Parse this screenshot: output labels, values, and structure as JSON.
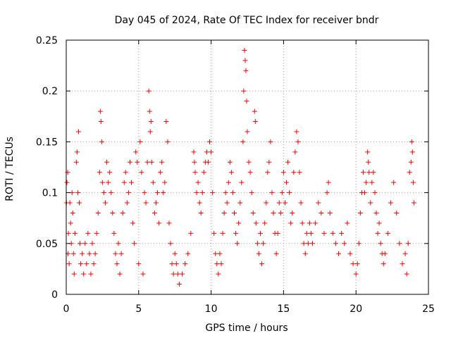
{
  "chart_data": {
    "type": "scatter",
    "title": "Day 045 of 2024, Rate Of TEC Index for receiver bndr",
    "xlabel": "GPS time / hours",
    "ylabel": "ROTI / TECUs",
    "xlim": [
      0,
      25
    ],
    "ylim": [
      0,
      0.25
    ],
    "xticks": [
      0,
      5,
      10,
      15,
      20,
      25
    ],
    "xtick_labels": [
      "0",
      "5",
      "10",
      "15",
      "20",
      "25"
    ],
    "yticks": [
      0,
      0.05,
      0.1,
      0.15,
      0.2,
      0.25
    ],
    "ytick_labels": [
      "0",
      "0.05",
      "0.1",
      "0.15",
      "0.2",
      "0.25"
    ],
    "grid": true,
    "marker": "+",
    "color": "#ff0000",
    "series": [
      {
        "name": "ROTI",
        "points": [
          [
            0.02,
            0.09
          ],
          [
            0.05,
            0.11
          ],
          [
            0.1,
            0.12
          ],
          [
            0.12,
            0.04
          ],
          [
            0.15,
            0.06
          ],
          [
            0.2,
            0.03
          ],
          [
            0.25,
            0.09
          ],
          [
            0.3,
            0.07
          ],
          [
            0.35,
            0.05
          ],
          [
            0.4,
            0.1
          ],
          [
            0.45,
            0.08
          ],
          [
            0.5,
            0.04
          ],
          [
            0.55,
            0.02
          ],
          [
            0.6,
            0.06
          ],
          [
            0.7,
            0.13
          ],
          [
            0.75,
            0.14
          ],
          [
            0.8,
            0.1
          ],
          [
            0.85,
            0.16
          ],
          [
            0.9,
            0.09
          ],
          [
            0.95,
            0.05
          ],
          [
            1.0,
            0.03
          ],
          [
            1.1,
            0.04
          ],
          [
            1.2,
            0.02
          ],
          [
            1.3,
            0.05
          ],
          [
            1.4,
            0.03
          ],
          [
            1.5,
            0.06
          ],
          [
            1.6,
            0.04
          ],
          [
            1.7,
            0.02
          ],
          [
            1.8,
            0.05
          ],
          [
            1.9,
            0.03
          ],
          [
            2.0,
            0.04
          ],
          [
            2.1,
            0.06
          ],
          [
            2.2,
            0.08
          ],
          [
            2.3,
            0.12
          ],
          [
            2.35,
            0.18
          ],
          [
            2.4,
            0.17
          ],
          [
            2.45,
            0.15
          ],
          [
            2.5,
            0.11
          ],
          [
            2.6,
            0.1
          ],
          [
            2.7,
            0.09
          ],
          [
            2.8,
            0.13
          ],
          [
            2.9,
            0.11
          ],
          [
            3.0,
            0.12
          ],
          [
            3.1,
            0.1
          ],
          [
            3.2,
            0.08
          ],
          [
            3.3,
            0.06
          ],
          [
            3.4,
            0.04
          ],
          [
            3.5,
            0.03
          ],
          [
            3.6,
            0.05
          ],
          [
            3.7,
            0.02
          ],
          [
            3.8,
            0.04
          ],
          [
            3.9,
            0.08
          ],
          [
            4.0,
            0.11
          ],
          [
            4.1,
            0.12
          ],
          [
            4.2,
            0.09
          ],
          [
            4.3,
            0.1
          ],
          [
            4.4,
            0.13
          ],
          [
            4.5,
            0.11
          ],
          [
            4.6,
            0.07
          ],
          [
            4.7,
            0.05
          ],
          [
            4.8,
            0.14
          ],
          [
            4.9,
            0.13
          ],
          [
            5.0,
            0.03
          ],
          [
            5.1,
            0.15
          ],
          [
            5.2,
            0.12
          ],
          [
            5.3,
            0.02
          ],
          [
            5.4,
            0.1
          ],
          [
            5.5,
            0.09
          ],
          [
            5.6,
            0.13
          ],
          [
            5.7,
            0.2
          ],
          [
            5.75,
            0.18
          ],
          [
            5.8,
            0.16
          ],
          [
            5.85,
            0.17
          ],
          [
            5.9,
            0.13
          ],
          [
            6.0,
            0.11
          ],
          [
            6.1,
            0.08
          ],
          [
            6.2,
            0.09
          ],
          [
            6.3,
            0.1
          ],
          [
            6.4,
            0.07
          ],
          [
            6.5,
            0.12
          ],
          [
            6.6,
            0.13
          ],
          [
            6.7,
            0.1
          ],
          [
            6.8,
            0.11
          ],
          [
            6.9,
            0.17
          ],
          [
            7.0,
            0.15
          ],
          [
            7.1,
            0.07
          ],
          [
            7.2,
            0.05
          ],
          [
            7.3,
            0.03
          ],
          [
            7.4,
            0.02
          ],
          [
            7.5,
            0.04
          ],
          [
            7.6,
            0.03
          ],
          [
            7.7,
            0.02
          ],
          [
            7.8,
            0.01
          ],
          [
            8.0,
            0.02
          ],
          [
            8.2,
            0.03
          ],
          [
            8.4,
            0.04
          ],
          [
            8.6,
            0.06
          ],
          [
            8.8,
            0.14
          ],
          [
            8.85,
            0.13
          ],
          [
            8.9,
            0.12
          ],
          [
            9.0,
            0.1
          ],
          [
            9.1,
            0.11
          ],
          [
            9.2,
            0.09
          ],
          [
            9.3,
            0.08
          ],
          [
            9.4,
            0.1
          ],
          [
            9.5,
            0.12
          ],
          [
            9.6,
            0.13
          ],
          [
            9.7,
            0.14
          ],
          [
            9.8,
            0.13
          ],
          [
            9.9,
            0.15
          ],
          [
            10.0,
            0.14
          ],
          [
            10.1,
            0.1
          ],
          [
            10.2,
            0.06
          ],
          [
            10.3,
            0.04
          ],
          [
            10.4,
            0.03
          ],
          [
            10.5,
            0.02
          ],
          [
            10.6,
            0.04
          ],
          [
            10.7,
            0.03
          ],
          [
            10.8,
            0.06
          ],
          [
            10.9,
            0.08
          ],
          [
            11.0,
            0.1
          ],
          [
            11.1,
            0.09
          ],
          [
            11.2,
            0.11
          ],
          [
            11.3,
            0.13
          ],
          [
            11.4,
            0.12
          ],
          [
            11.5,
            0.1
          ],
          [
            11.6,
            0.08
          ],
          [
            11.7,
            0.06
          ],
          [
            11.8,
            0.05
          ],
          [
            11.9,
            0.07
          ],
          [
            12.0,
            0.09
          ],
          [
            12.1,
            0.11
          ],
          [
            12.2,
            0.15
          ],
          [
            12.25,
            0.2
          ],
          [
            12.3,
            0.24
          ],
          [
            12.35,
            0.23
          ],
          [
            12.4,
            0.22
          ],
          [
            12.45,
            0.19
          ],
          [
            12.5,
            0.16
          ],
          [
            12.6,
            0.13
          ],
          [
            12.7,
            0.12
          ],
          [
            12.8,
            0.1
          ],
          [
            12.9,
            0.08
          ],
          [
            13.0,
            0.18
          ],
          [
            13.05,
            0.17
          ],
          [
            13.1,
            0.07
          ],
          [
            13.2,
            0.05
          ],
          [
            13.3,
            0.04
          ],
          [
            13.4,
            0.06
          ],
          [
            13.5,
            0.03
          ],
          [
            13.6,
            0.05
          ],
          [
            13.7,
            0.07
          ],
          [
            13.8,
            0.09
          ],
          [
            13.9,
            0.12
          ],
          [
            14.0,
            0.13
          ],
          [
            14.1,
            0.15
          ],
          [
            14.2,
            0.1
          ],
          [
            14.3,
            0.08
          ],
          [
            14.4,
            0.06
          ],
          [
            14.5,
            0.04
          ],
          [
            14.6,
            0.06
          ],
          [
            14.7,
            0.09
          ],
          [
            14.8,
            0.08
          ],
          [
            14.9,
            0.1
          ],
          [
            15.0,
            0.12
          ],
          [
            15.1,
            0.09
          ],
          [
            15.2,
            0.11
          ],
          [
            15.3,
            0.13
          ],
          [
            15.4,
            0.1
          ],
          [
            15.5,
            0.07
          ],
          [
            15.6,
            0.08
          ],
          [
            15.7,
            0.12
          ],
          [
            15.8,
            0.14
          ],
          [
            15.9,
            0.16
          ],
          [
            16.0,
            0.15
          ],
          [
            16.1,
            0.12
          ],
          [
            16.2,
            0.09
          ],
          [
            16.3,
            0.07
          ],
          [
            16.4,
            0.05
          ],
          [
            16.5,
            0.04
          ],
          [
            16.6,
            0.06
          ],
          [
            16.7,
            0.05
          ],
          [
            16.8,
            0.07
          ],
          [
            16.9,
            0.06
          ],
          [
            17.0,
            0.05
          ],
          [
            17.2,
            0.07
          ],
          [
            17.4,
            0.09
          ],
          [
            17.6,
            0.08
          ],
          [
            17.8,
            0.06
          ],
          [
            18.0,
            0.1
          ],
          [
            18.1,
            0.11
          ],
          [
            18.2,
            0.08
          ],
          [
            18.4,
            0.06
          ],
          [
            18.6,
            0.05
          ],
          [
            18.8,
            0.04
          ],
          [
            19.0,
            0.06
          ],
          [
            19.2,
            0.05
          ],
          [
            19.4,
            0.07
          ],
          [
            19.6,
            0.04
          ],
          [
            19.8,
            0.03
          ],
          [
            20.0,
            0.02
          ],
          [
            20.1,
            0.03
          ],
          [
            20.2,
            0.05
          ],
          [
            20.3,
            0.08
          ],
          [
            20.4,
            0.1
          ],
          [
            20.5,
            0.12
          ],
          [
            20.6,
            0.1
          ],
          [
            20.7,
            0.11
          ],
          [
            20.8,
            0.14
          ],
          [
            20.85,
            0.13
          ],
          [
            20.9,
            0.12
          ],
          [
            21.0,
            0.09
          ],
          [
            21.1,
            0.11
          ],
          [
            21.2,
            0.12
          ],
          [
            21.3,
            0.1
          ],
          [
            21.4,
            0.08
          ],
          [
            21.5,
            0.06
          ],
          [
            21.6,
            0.07
          ],
          [
            21.7,
            0.05
          ],
          [
            21.8,
            0.04
          ],
          [
            21.9,
            0.03
          ],
          [
            22.0,
            0.04
          ],
          [
            22.2,
            0.06
          ],
          [
            22.4,
            0.09
          ],
          [
            22.6,
            0.11
          ],
          [
            22.8,
            0.08
          ],
          [
            23.0,
            0.05
          ],
          [
            23.2,
            0.03
          ],
          [
            23.4,
            0.04
          ],
          [
            23.5,
            0.02
          ],
          [
            23.6,
            0.05
          ],
          [
            23.7,
            0.12
          ],
          [
            23.8,
            0.13
          ],
          [
            23.85,
            0.15
          ],
          [
            23.9,
            0.14
          ],
          [
            23.95,
            0.11
          ],
          [
            24.0,
            0.09
          ]
        ]
      }
    ]
  }
}
